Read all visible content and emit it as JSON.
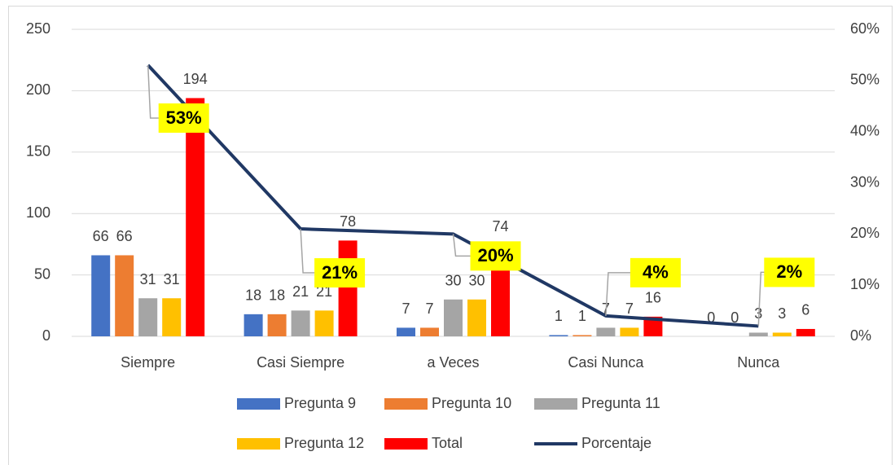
{
  "chart_data": {
    "type": "bar",
    "categories": [
      "Siempre",
      "Casi Siempre",
      "a Veces",
      "Casi Nunca",
      "Nunca"
    ],
    "series": [
      {
        "name": "Pregunta 9",
        "color": "#4472c4",
        "values": [
          66,
          18,
          7,
          1,
          0
        ]
      },
      {
        "name": "Pregunta 10",
        "color": "#ed7d31",
        "values": [
          66,
          18,
          7,
          1,
          0
        ]
      },
      {
        "name": "Pregunta 11",
        "color": "#a5a5a5",
        "values": [
          31,
          21,
          30,
          7,
          3
        ]
      },
      {
        "name": "Pregunta 12",
        "color": "#ffc000",
        "values": [
          31,
          21,
          30,
          7,
          3
        ]
      },
      {
        "name": "Total",
        "color": "#ff0000",
        "values": [
          194,
          78,
          74,
          16,
          6
        ]
      },
      {
        "name": "Porcentaje",
        "type": "line",
        "axis": "y2",
        "color": "#203864",
        "values": [
          53,
          21,
          20,
          4,
          2
        ],
        "value_labels": [
          "53%",
          "21%",
          "20%",
          "4%",
          "2%"
        ],
        "label_color": "#ffff00"
      }
    ],
    "ylim": [
      0,
      250
    ],
    "yticks": [
      0,
      50,
      100,
      150,
      200,
      250
    ],
    "y2lim": [
      0,
      60
    ],
    "y2ticks": [
      {
        "value": 0,
        "label": "0%"
      },
      {
        "value": 10,
        "label": "10%"
      },
      {
        "value": 20,
        "label": "20%"
      },
      {
        "value": 30,
        "label": "30%"
      },
      {
        "value": 40,
        "label": "40%"
      },
      {
        "value": 50,
        "label": "50%"
      },
      {
        "value": 60,
        "label": "60%"
      }
    ],
    "grid": true,
    "legend": "bottom"
  }
}
